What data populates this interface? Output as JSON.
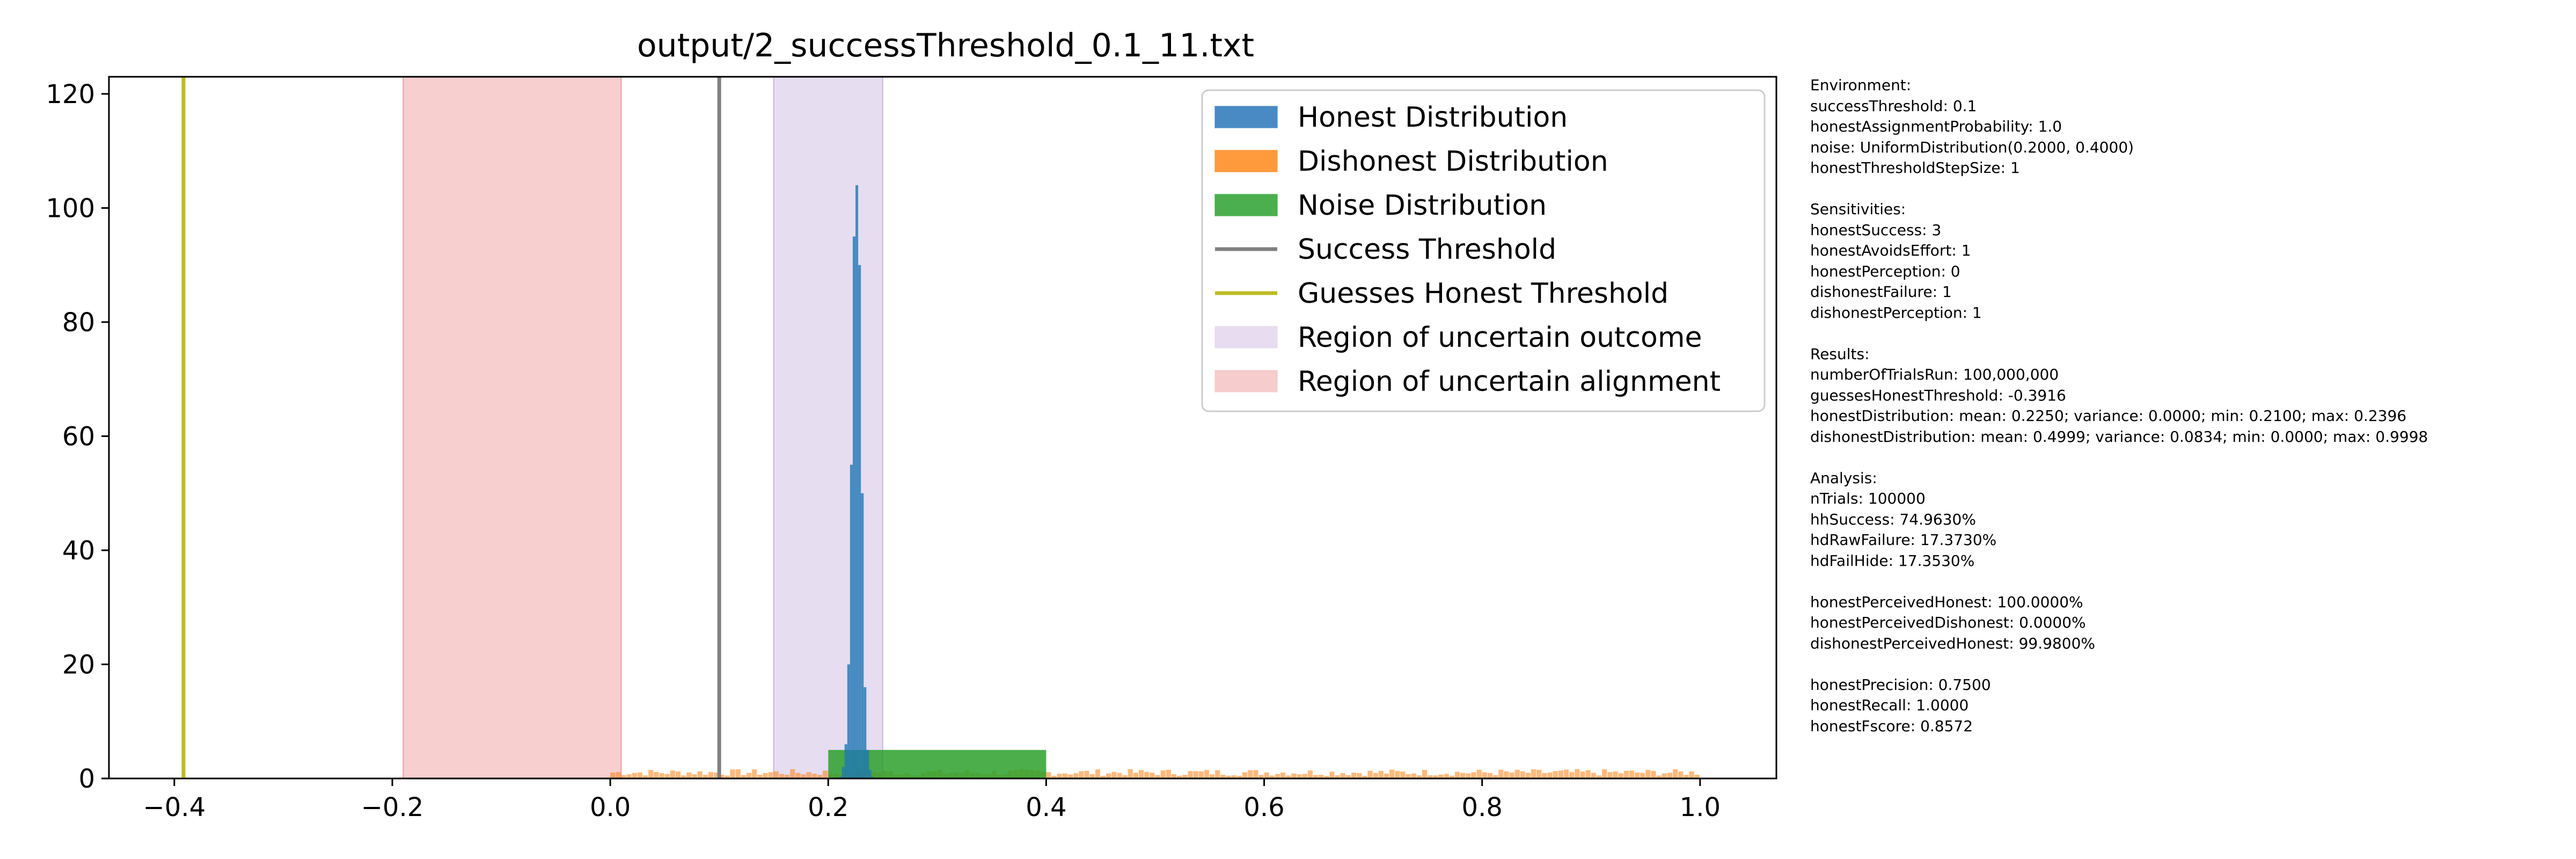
{
  "chart_data": {
    "type": "histogram",
    "title": "output/2_successThreshold_0.1_11.txt",
    "xlabel": "",
    "ylabel": "",
    "xlim": [
      -0.46,
      1.07
    ],
    "ylim": [
      0,
      123
    ],
    "xticks": [
      "−0.4",
      "−0.2",
      "0.0",
      "0.2",
      "0.4",
      "0.6",
      "0.8",
      "1.0"
    ],
    "xtick_values": [
      -0.4,
      -0.2,
      0.0,
      0.2,
      0.4,
      0.6,
      0.8,
      1.0
    ],
    "yticks": [
      "0",
      "20",
      "40",
      "60",
      "80",
      "100",
      "120"
    ],
    "ytick_values": [
      0,
      20,
      40,
      60,
      80,
      100,
      120
    ],
    "grid": false,
    "legend_position": "top-right",
    "colors": {
      "honest": "#1f77b4",
      "dishonest": "#ff7f0e",
      "noise": "#2ca02c",
      "success_threshold": "#808080",
      "guess_threshold": "#bcbd22",
      "uncertain_outcome": "#c8b4e0",
      "uncertain_alignment": "#f0a8a8"
    },
    "legend": [
      {
        "label": "Honest Distribution",
        "kind": "patch",
        "color": "#4a8ac4"
      },
      {
        "label": "Dishonest Distribution",
        "kind": "patch",
        "color": "#ff9a3c"
      },
      {
        "label": "Noise Distribution",
        "kind": "patch",
        "color": "#4bae4f"
      },
      {
        "label": "Success Threshold",
        "kind": "line",
        "color": "#808080"
      },
      {
        "label": "Guesses Honest Threshold",
        "kind": "line",
        "color": "#bcbd22"
      },
      {
        "label": "Region of uncertain outcome",
        "kind": "patch",
        "color": "#e8dcf0"
      },
      {
        "label": "Region of uncertain alignment",
        "kind": "patch",
        "color": "#f6cccc"
      }
    ],
    "series": {
      "honest_histogram": {
        "x": [
          0.21,
          0.2125,
          0.215,
          0.2175,
          0.22,
          0.2225,
          0.225,
          0.2275,
          0.23,
          0.2325,
          0.235,
          0.2375,
          0.2396
        ],
        "values": [
          0.3,
          2,
          6,
          20,
          55,
          95,
          104,
          90,
          50,
          16,
          5,
          1.5,
          0.3
        ]
      },
      "dishonest_histogram": {
        "range": [
          0.0,
          1.0
        ],
        "approx_height": 1.0
      },
      "noise_histogram": {
        "range": [
          0.2,
          0.4
        ],
        "height": 5
      }
    },
    "success_threshold": 0.1,
    "guesses_honest_threshold": -0.3916,
    "uncertain_outcome_region": [
      0.15,
      0.25
    ],
    "uncertain_alignment_region": [
      -0.19,
      0.01
    ]
  },
  "info_panel": [
    "Environment:",
    "successThreshold: 0.1",
    "honestAssignmentProbability: 1.0",
    "noise: UniformDistribution(0.2000, 0.4000)",
    "honestThresholdStepSize: 1",
    "",
    "Sensitivities:",
    "honestSuccess: 3",
    "honestAvoidsEffort: 1",
    "honestPerception: 0",
    "dishonestFailure: 1",
    "dishonestPerception: 1",
    "",
    "Results:",
    "numberOfTrialsRun: 100,000,000",
    "guessesHonestThreshold: -0.3916",
    "honestDistribution: mean: 0.2250; variance: 0.0000; min: 0.2100; max: 0.2396",
    "dishonestDistribution: mean: 0.4999; variance: 0.0834; min: 0.0000; max: 0.9998",
    "",
    "Analysis:",
    "nTrials: 100000",
    "hhSuccess: 74.9630%",
    "hdRawFailure: 17.3730%",
    "hdFailHide: 17.3530%",
    "",
    "honestPerceivedHonest: 100.0000%",
    "honestPerceivedDishonest: 0.0000%",
    "dishonestPerceivedHonest: 99.9800%",
    "",
    "honestPrecision: 0.7500",
    "honestRecall: 1.0000",
    "honestFscore: 0.8572"
  ]
}
